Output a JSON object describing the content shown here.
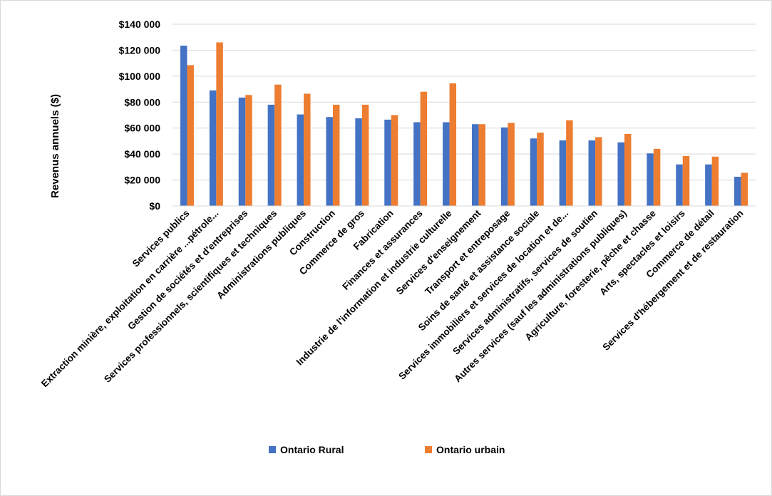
{
  "chart_data": {
    "type": "bar",
    "title": "",
    "ylabel": "Revenus annuels ($)",
    "xlabel": "",
    "ylim": [
      0,
      140000
    ],
    "yticks": [
      0,
      20000,
      40000,
      60000,
      80000,
      100000,
      120000,
      140000
    ],
    "ytick_labels": [
      "$0",
      "$20 000",
      "$40 000",
      "$60 000",
      "$80 000",
      "$100 000",
      "$120 000",
      "$140 000"
    ],
    "grid": true,
    "legend_position": "bottom",
    "categories": [
      "Services publics",
      "Extraction minière, exploitation en carrière ...pétrole...",
      "Gestion de sociétés et d'entreprises",
      "Services professionnels, scientifiques et techniques",
      "Administrations publiques",
      "Construction",
      "Commerce de gros",
      "Fabrication",
      "Finances et assurances",
      "Industrie de l'information et industrie culturelle",
      "Services d'enseignement",
      "Transport et entreposage",
      "Soins de santé et assistance sociale",
      "Services immobiliers et services de location et de...",
      "Services administratifs, services de soutien",
      "Autres services (sauf les administrations publiques)",
      "Agriculture, foresterie, pêche et chasse",
      "Arts, spectacles et loisirs",
      "Commerce de détail",
      "Services d'hébergement et de restauration"
    ],
    "series": [
      {
        "name": "Ontario Rural",
        "color": "#4472C4",
        "values": [
          123500,
          89000,
          83500,
          78000,
          70500,
          68500,
          67500,
          66500,
          64500,
          64500,
          63000,
          60500,
          52000,
          50500,
          50500,
          49000,
          40500,
          32000,
          32000,
          22500
        ]
      },
      {
        "name": "Ontario urbain",
        "color": "#ED7D31",
        "values": [
          108500,
          126000,
          85500,
          93500,
          86500,
          78000,
          78000,
          70000,
          88000,
          94500,
          63000,
          64000,
          56500,
          66000,
          53000,
          55500,
          44000,
          38500,
          38000,
          25500
        ]
      }
    ]
  }
}
